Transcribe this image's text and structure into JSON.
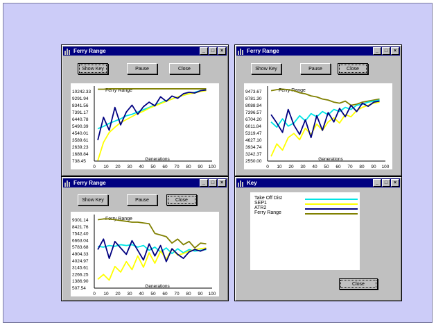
{
  "windows": [
    {
      "title": "Ferry Range",
      "buttons": {
        "show_key": "Show Key",
        "pause": "Pause",
        "close": "Close"
      },
      "chart_data": {
        "type": "line",
        "title": "Ferry Range",
        "xlabel": "Generations",
        "xlim": [
          0,
          100
        ],
        "x_ticks": [
          "0",
          "10",
          "20",
          "30",
          "40",
          "50",
          "60",
          "70",
          "80",
          "90",
          "100"
        ],
        "y_ticks": [
          "10242.33",
          "9291.94",
          "8341.56",
          "7391.17",
          "6440.78",
          "5490.39",
          "4540.01",
          "3589.61",
          "2639.23",
          "1688.84",
          "738.45"
        ],
        "ylim": [
          738.45,
          10242.33
        ],
        "series": [
          {
            "color": "#808000",
            "values": [
              10200,
              10200,
              10250,
              10250,
              10250,
              10250,
              10250,
              10250,
              10250,
              10250,
              10250,
              10250,
              10250,
              10250,
              10250,
              10250,
              10250,
              10250,
              10250,
              10250
            ]
          },
          {
            "color": "#00e5e5",
            "values": [
              5000,
              5300,
              5700,
              6000,
              6300,
              6700,
              6900,
              7200,
              7500,
              7800,
              8100,
              8400,
              8700,
              8900,
              9200,
              9400,
              9600,
              9800,
              10000,
              10100
            ]
          },
          {
            "color": "#ffff00",
            "values": [
              800,
              3200,
              4500,
              5200,
              5800,
              6200,
              6600,
              7000,
              7300,
              7700,
              8000,
              8300,
              8600,
              8900,
              9200,
              9400,
              9600,
              9700,
              9900,
              10000
            ]
          },
          {
            "color": "#000080",
            "values": [
              3500,
              6500,
              4800,
              7800,
              5500,
              7200,
              8100,
              6900,
              7900,
              8500,
              8000,
              9200,
              8600,
              9300,
              9000,
              9600,
              9800,
              9700,
              10000,
              10100
            ]
          }
        ]
      }
    },
    {
      "title": "Ferry Range",
      "buttons": {
        "show_key": "Show Key",
        "pause": "Pause",
        "close": "Close"
      },
      "chart_data": {
        "type": "line",
        "title": "Ferry Range",
        "xlabel": "Generations",
        "xlim": [
          0,
          100
        ],
        "x_ticks": [
          "0",
          "10",
          "20",
          "30",
          "40",
          "50",
          "60",
          "70",
          "80",
          "90",
          "100"
        ],
        "y_ticks": [
          "9473.67",
          "8781.30",
          "8088.94",
          "7396.57",
          "6704.20",
          "6011.84",
          "5319.47",
          "4627.10",
          "3934.74",
          "3242.37",
          "2550.00"
        ],
        "ylim": [
          2550.0,
          9473.67
        ],
        "series": [
          {
            "color": "#808000",
            "values": [
              9300,
              9400,
              9450,
              9400,
              9300,
              9100,
              9000,
              8800,
              8700,
              8500,
              8400,
              8200,
              8100,
              8300,
              7900,
              8000,
              8200,
              8300,
              8400,
              8500
            ]
          },
          {
            "color": "#00e5e5",
            "values": [
              6300,
              5800,
              6600,
              5900,
              6200,
              6900,
              6400,
              7100,
              6800,
              7300,
              7000,
              7500,
              7300,
              7700,
              7500,
              7900,
              8000,
              8200,
              8300,
              8400
            ]
          },
          {
            "color": "#ffff00",
            "values": [
              3000,
              4200,
              3600,
              4800,
              5200,
              4600,
              5700,
              5100,
              6100,
              5500,
              6300,
              6700,
              6200,
              7000,
              6800,
              7400,
              7700,
              7900,
              8100,
              8200
            ]
          },
          {
            "color": "#000080",
            "values": [
              7000,
              6200,
              5300,
              7500,
              6000,
              5100,
              6500,
              4800,
              6900,
              5500,
              7200,
              6300,
              7600,
              6800,
              7900,
              7300,
              8100,
              7800,
              8200,
              8300
            ]
          }
        ]
      }
    },
    {
      "title": "Ferry Range",
      "buttons": {
        "show_key": "Show Key",
        "pause": "Pause",
        "close": "Close"
      },
      "chart_data": {
        "type": "line",
        "title": "Ferry Range",
        "xlabel": "Generations",
        "xlim": [
          0,
          100
        ],
        "x_ticks": [
          "0",
          "10",
          "20",
          "30",
          "40",
          "50",
          "60",
          "70",
          "80",
          "90",
          "100"
        ],
        "y_ticks": [
          "9301.14",
          "8421.76",
          "7542.40",
          "6663.04",
          "5783.68",
          "4904.33",
          "4024.97",
          "3145.61",
          "2266.25",
          "1386.90",
          "507.54"
        ],
        "ylim": [
          507.54,
          9301.14
        ],
        "series": [
          {
            "color": "#808000",
            "values": [
              9000,
              9100,
              9100,
              9000,
              8900,
              8800,
              8700,
              8700,
              8600,
              8500,
              7300,
              7100,
              6900,
              6100,
              6600,
              5900,
              6300,
              5500,
              6100,
              6000
            ]
          },
          {
            "color": "#00e5e5",
            "values": [
              5700,
              5600,
              5800,
              5700,
              5900,
              5800,
              5900,
              5600,
              5800,
              5200,
              5600,
              5000,
              5500,
              4800,
              5400,
              4900,
              5300,
              5100,
              5200,
              5300
            ]
          },
          {
            "color": "#ffff00",
            "values": [
              1600,
              2200,
              1500,
              3200,
              2500,
              3800,
              2800,
              4500,
              3100,
              4900,
              3600,
              5100,
              4100,
              5400,
              4600,
              4800,
              5100,
              5300,
              5400,
              5500
            ]
          },
          {
            "color": "#000080",
            "values": [
              5300,
              6600,
              4200,
              6300,
              5500,
              4700,
              6400,
              5200,
              4000,
              6000,
              4500,
              5800,
              3800,
              5400,
              4700,
              4200,
              5000,
              5300,
              5100,
              5400
            ]
          }
        ]
      }
    }
  ],
  "key_window": {
    "title": "Key",
    "close_label": "Close",
    "entries": [
      {
        "label": "Take Off Dist",
        "color": "#00e5e5"
      },
      {
        "label": "SEP1",
        "color": "#ffff00"
      },
      {
        "label": "ATR2",
        "color": "#000080"
      },
      {
        "label": "Ferry Range",
        "color": "#808000"
      }
    ]
  }
}
